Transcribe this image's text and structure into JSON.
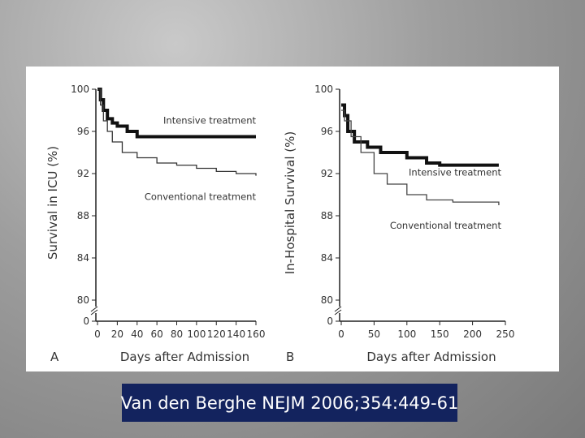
{
  "chart_data": [
    {
      "type": "line",
      "panel_label": "A",
      "xlabel": "Days after Admission",
      "ylabel": "Survival in ICU (%)",
      "xlim": [
        0,
        160
      ],
      "xticks": [
        0,
        20,
        40,
        60,
        80,
        100,
        120,
        140,
        160
      ],
      "ylim": [
        80,
        100
      ],
      "yticks": [
        0,
        80,
        84,
        88,
        92,
        96,
        100
      ],
      "y_break": [
        0,
        80
      ],
      "step": true,
      "series": [
        {
          "name": "Intensive treatment",
          "color": "#111111",
          "x": [
            0,
            3,
            6,
            10,
            15,
            20,
            30,
            40,
            160
          ],
          "values": [
            100,
            99,
            98,
            97.2,
            96.8,
            96.5,
            96,
            95.5,
            95.5
          ]
        },
        {
          "name": "Conventional treatment",
          "color": "#333333",
          "x": [
            0,
            3,
            6,
            10,
            15,
            25,
            40,
            60,
            80,
            100,
            120,
            140,
            160
          ],
          "values": [
            100,
            98.5,
            97,
            96,
            95,
            94,
            93.5,
            93,
            92.8,
            92.5,
            92.2,
            92,
            91.8
          ]
        }
      ]
    },
    {
      "type": "line",
      "panel_label": "B",
      "xlabel": "Days after Admission",
      "ylabel": "In-Hospital Survival (%)",
      "xlim": [
        0,
        250
      ],
      "xticks": [
        0,
        50,
        100,
        150,
        200,
        250
      ],
      "ylim": [
        80,
        100
      ],
      "yticks": [
        0,
        80,
        84,
        88,
        92,
        96,
        100
      ],
      "y_break": [
        0,
        80
      ],
      "step": true,
      "series": [
        {
          "name": "Intensive treatment",
          "color": "#111111",
          "x": [
            0,
            5,
            10,
            20,
            40,
            60,
            100,
            130,
            150,
            240
          ],
          "values": [
            98.5,
            97.5,
            96,
            95,
            94.5,
            94,
            93.5,
            93,
            92.8,
            92.8
          ]
        },
        {
          "name": "Conventional treatment",
          "color": "#444444",
          "x": [
            0,
            5,
            15,
            30,
            50,
            70,
            100,
            130,
            170,
            240
          ],
          "values": [
            98,
            97,
            95.5,
            94,
            92,
            91,
            90,
            89.5,
            89.3,
            89
          ]
        }
      ]
    }
  ],
  "citation": "Van den Berghe NEJM 2006;354:449-61"
}
